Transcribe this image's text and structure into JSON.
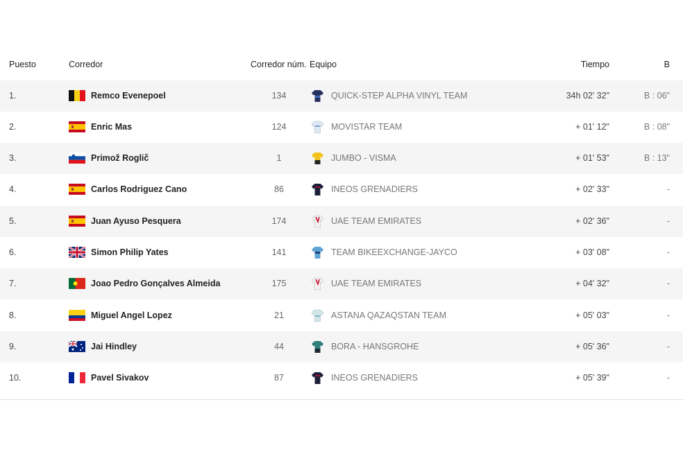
{
  "table": {
    "headers": [
      "Puesto",
      "Corredor",
      "Corredor núm.",
      "Equipo",
      "Tiempo",
      "B"
    ],
    "rows": [
      [
        "1.",
        "Remco Evenepoel",
        "134",
        "QUICK-STEP ALPHA VINYL TEAM",
        "34h 02' 32\"",
        "B : 06\""
      ],
      [
        "2.",
        "Enric Mas",
        "124",
        "MOVISTAR TEAM",
        "+ 01' 12\"",
        "B : 08\""
      ],
      [
        "3.",
        "Primož Roglič",
        "1",
        "JUMBO - VISMA",
        "+ 01' 53\"",
        "B : 13\""
      ],
      [
        "4.",
        "Carlos Rodriguez Cano",
        "86",
        "INEOS GRENADIERS",
        "+ 02' 33\"",
        "-"
      ],
      [
        "5.",
        "Juan Ayuso Pesquera",
        "174",
        "UAE TEAM EMIRATES",
        "+ 02' 36\"",
        "-"
      ],
      [
        "6.",
        "Simon Philip Yates",
        "141",
        "TEAM BIKEEXCHANGE-JAYCO",
        "+ 03' 08\"",
        "-"
      ],
      [
        "7.",
        "Joao Pedro Gonçalves Almeida",
        "175",
        "UAE TEAM EMIRATES",
        "+ 04' 32\"",
        "-"
      ],
      [
        "8.",
        "Miguel Angel Lopez",
        "21",
        "ASTANA QAZAQSTAN TEAM",
        "+ 05' 03\"",
        "-"
      ],
      [
        "9.",
        "Jai Hindley",
        "44",
        "BORA - HANSGROHE",
        "+ 05' 36\"",
        "-"
      ],
      [
        "10.",
        "Pavel Sivakov",
        "87",
        "INEOS GRENADIERS",
        "+ 05' 39\"",
        "-"
      ]
    ]
  }
}
